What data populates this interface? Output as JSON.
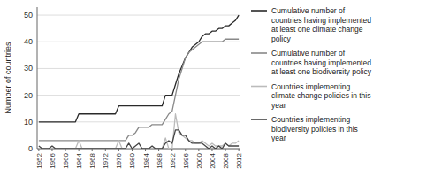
{
  "chart_data": {
    "type": "line",
    "ylabel": "Number of countries",
    "x": [
      1952,
      1953,
      1954,
      1955,
      1956,
      1957,
      1958,
      1959,
      1960,
      1961,
      1962,
      1963,
      1964,
      1965,
      1966,
      1967,
      1968,
      1969,
      1970,
      1971,
      1972,
      1973,
      1974,
      1975,
      1976,
      1977,
      1978,
      1979,
      1980,
      1981,
      1982,
      1983,
      1984,
      1985,
      1986,
      1987,
      1988,
      1989,
      1990,
      1991,
      1992,
      1993,
      1994,
      1995,
      1996,
      1997,
      1998,
      1999,
      2000,
      2001,
      2002,
      2003,
      2004,
      2005,
      2006,
      2007,
      2008,
      2009,
      2010,
      2011,
      2012
    ],
    "series": [
      {
        "name": "Cumulative number of\ncountries having implemented\nat least one climate change\npolicy",
        "color": "#2a2a2a",
        "values": [
          10,
          10,
          10,
          10,
          10,
          10,
          10,
          10,
          10,
          10,
          10,
          10,
          13,
          13,
          13,
          13,
          13,
          13,
          13,
          13,
          13,
          13,
          13,
          13,
          16,
          16,
          16,
          16,
          16,
          16,
          16,
          16,
          16,
          16,
          16,
          16,
          16,
          16,
          20,
          20,
          20,
          24,
          28,
          31,
          34,
          36,
          38,
          39,
          40,
          42,
          43,
          43,
          44,
          44,
          45,
          45,
          46,
          46,
          47,
          48,
          50
        ]
      },
      {
        "name": "Cumulative number of\ncountries having implemented\nat least one biodiversity policy",
        "color": "#888888",
        "values": [
          3,
          3,
          3,
          3,
          3,
          3,
          3,
          3,
          3,
          3,
          3,
          3,
          3,
          3,
          3,
          3,
          3,
          3,
          3,
          3,
          3,
          3,
          3,
          3,
          3,
          3,
          3,
          5,
          5,
          6,
          8,
          8,
          8,
          8,
          9,
          9,
          9,
          9,
          11,
          13,
          14,
          20,
          26,
          30,
          34,
          36,
          37,
          38,
          39,
          40,
          40,
          40,
          40,
          40,
          40,
          40,
          41,
          41,
          41,
          41,
          41
        ]
      },
      {
        "name": "Countries implementing\nclimate change policies in this\nyear",
        "color": "#bbbbbb",
        "values": [
          0,
          0,
          0,
          0,
          0,
          0,
          0,
          0,
          0,
          0,
          0,
          0,
          3,
          0,
          0,
          0,
          0,
          0,
          0,
          0,
          0,
          0,
          0,
          0,
          3,
          0,
          0,
          0,
          0,
          0,
          0,
          0,
          0,
          0,
          0,
          0,
          0,
          0,
          4,
          0,
          0,
          13,
          6,
          5,
          4,
          3,
          3,
          2,
          2,
          3,
          2,
          1,
          2,
          1,
          1,
          1,
          2,
          1,
          2,
          2,
          3
        ]
      },
      {
        "name": "Countries implementing\nbiodiversity policies in this\nyear",
        "color": "#444444",
        "values": [
          1,
          0,
          0,
          0,
          1,
          0,
          0,
          0,
          0,
          0,
          0,
          0,
          0,
          0,
          0,
          0,
          0,
          0,
          0,
          0,
          0,
          0,
          0,
          0,
          0,
          0,
          0,
          2,
          0,
          1,
          2,
          0,
          0,
          0,
          1,
          0,
          0,
          0,
          2,
          3,
          2,
          7,
          7,
          5,
          5,
          3,
          2,
          2,
          2,
          2,
          1,
          0,
          1,
          0,
          1,
          0,
          2,
          1,
          1,
          1,
          1
        ]
      }
    ],
    "xlim": [
      1951.5,
      2012.5
    ],
    "xticks": [
      1952,
      1956,
      1960,
      1964,
      1968,
      1972,
      1976,
      1980,
      1984,
      1988,
      1992,
      1996,
      2000,
      2004,
      2008,
      2012
    ],
    "ylim": [
      0,
      53
    ],
    "yticks": [
      0,
      10,
      20,
      30,
      40,
      50
    ],
    "grid": true,
    "legend": "right"
  }
}
